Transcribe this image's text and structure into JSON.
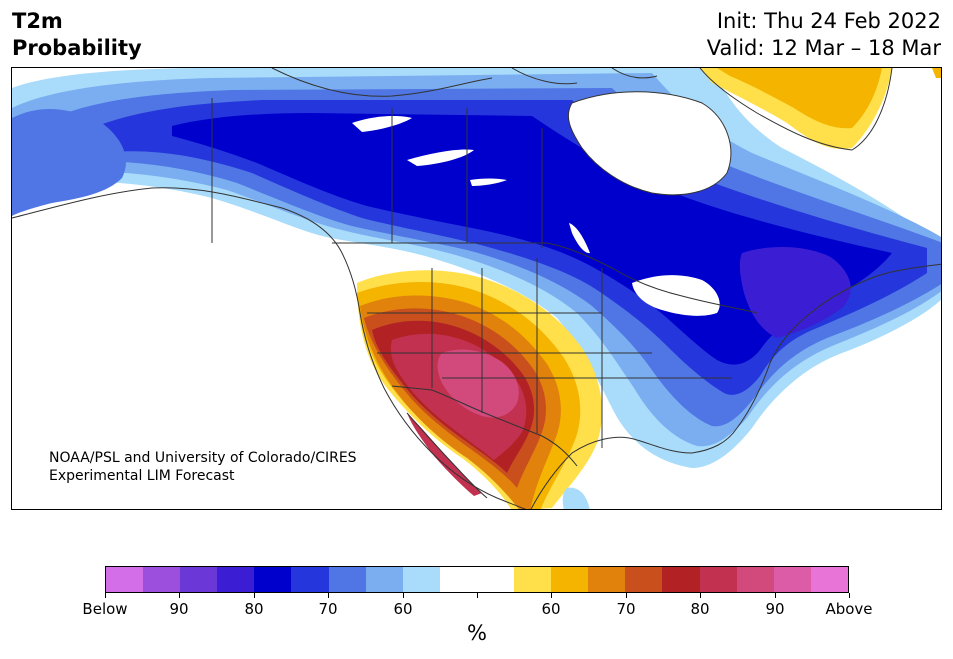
{
  "title": {
    "line1": "T2m",
    "line2": "Probability"
  },
  "forecast": {
    "init": "Init: Thu 24 Feb 2022",
    "valid": "Valid: 12 Mar – 18 Mar"
  },
  "credit": {
    "line1": "NOAA/PSL and University of Colorado/CIRES",
    "line2": "Experimental LIM Forecast"
  },
  "colorbar": {
    "unit": "%",
    "colors": [
      "#d46ee8",
      "#9b4fdc",
      "#6b37d6",
      "#3b1ed4",
      "#0000cd",
      "#2436dc",
      "#4f76e4",
      "#7aaef0",
      "#a9dbfa",
      "#ffffff",
      "#ffffff",
      "#ffe04a",
      "#f4b400",
      "#e0820c",
      "#c9501c",
      "#b22225",
      "#c23250",
      "#d24a7c",
      "#dc5ca8",
      "#e874d8"
    ],
    "labels": [
      "Below",
      "90",
      "80",
      "70",
      "60",
      "",
      "60",
      "70",
      "80",
      "90",
      "Above"
    ]
  },
  "map": {
    "region": "North America",
    "palette": {
      "deep_blue": "#0000cd",
      "royal_blue": "#2436dc",
      "mid_blue": "#4f76e4",
      "light_blue": "#7aaef0",
      "pale_blue": "#a9dbfa",
      "indigo": "#3b1ed4",
      "yellow": "#ffe04a",
      "gold": "#f4b400",
      "orange": "#e0820c",
      "burnt": "#c9501c",
      "red": "#b22225",
      "crimson": "#c23250",
      "rose": "#d24a7c"
    }
  }
}
